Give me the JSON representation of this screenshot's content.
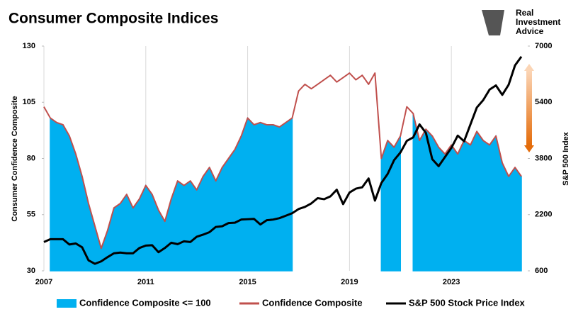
{
  "chart_data": {
    "type": "composite",
    "title": "Consumer Composite Indices",
    "y_label": "Consumer Confidence Composite",
    "y2_label": "S&P 500 Index",
    "xlim": [
      2007,
      2026
    ],
    "xticks": [
      2007,
      2011,
      2015,
      2019,
      2023
    ],
    "ylim": [
      30,
      130
    ],
    "yticks": [
      30,
      55,
      80,
      105,
      130
    ],
    "y2lim": [
      600,
      7000
    ],
    "y2ticks": [
      600,
      2200,
      3800,
      5400,
      7000
    ],
    "grid": "x",
    "x": [
      2007.0,
      2007.25,
      2007.5,
      2007.75,
      2008.0,
      2008.25,
      2008.5,
      2008.75,
      2009.0,
      2009.25,
      2009.5,
      2009.75,
      2010.0,
      2010.25,
      2010.5,
      2010.75,
      2011.0,
      2011.25,
      2011.5,
      2011.75,
      2012.0,
      2012.25,
      2012.5,
      2012.75,
      2013.0,
      2013.25,
      2013.5,
      2013.75,
      2014.0,
      2014.25,
      2014.5,
      2014.75,
      2015.0,
      2015.25,
      2015.5,
      2015.75,
      2016.0,
      2016.25,
      2016.5,
      2016.75,
      2017.0,
      2017.25,
      2017.5,
      2017.75,
      2018.0,
      2018.25,
      2018.5,
      2018.75,
      2019.0,
      2019.25,
      2019.5,
      2019.75,
      2020.0,
      2020.25,
      2020.5,
      2020.75,
      2021.0,
      2021.25,
      2021.5,
      2021.75,
      2022.0,
      2022.25,
      2022.5,
      2022.75,
      2023.0,
      2023.25,
      2023.5,
      2023.75,
      2024.0,
      2024.25,
      2024.5,
      2024.75,
      2025.0,
      2025.25,
      2025.5,
      2025.75
    ],
    "series": [
      {
        "name": "Confidence Composite <= 100",
        "kind": "area",
        "color": "#00b0f0",
        "values": [
          null,
          98,
          96,
          95,
          90,
          82,
          72,
          60,
          50,
          40,
          48,
          58,
          60,
          64,
          58,
          62,
          68,
          64,
          57,
          52,
          62,
          70,
          68,
          70,
          66,
          72,
          76,
          70,
          76,
          80,
          84,
          90,
          98,
          95,
          96,
          95,
          95,
          94,
          96,
          98,
          null,
          null,
          null,
          null,
          null,
          null,
          null,
          null,
          null,
          null,
          null,
          null,
          null,
          80,
          88,
          85,
          90,
          null,
          100,
          88,
          93,
          90,
          85,
          82,
          86,
          82,
          88,
          86,
          92,
          88,
          86,
          90,
          78,
          72,
          76,
          72
        ]
      },
      {
        "name": "Confidence Composite",
        "kind": "line",
        "color": "#c0504d",
        "values": [
          103,
          98,
          96,
          95,
          90,
          82,
          72,
          60,
          50,
          40,
          48,
          58,
          60,
          64,
          58,
          62,
          68,
          64,
          57,
          52,
          62,
          70,
          68,
          70,
          66,
          72,
          76,
          70,
          76,
          80,
          84,
          90,
          98,
          95,
          96,
          95,
          95,
          94,
          96,
          98,
          110,
          113,
          111,
          113,
          115,
          117,
          114,
          116,
          118,
          115,
          117,
          113,
          118,
          80,
          88,
          85,
          90,
          103,
          100,
          88,
          93,
          90,
          85,
          82,
          86,
          82,
          88,
          86,
          92,
          88,
          86,
          90,
          78,
          72,
          76,
          72
        ]
      },
      {
        "name": "S&P 500 Stock Price Index",
        "kind": "line",
        "axis": "y2",
        "color": "#000000",
        "values": [
          1420,
          1500,
          1500,
          1500,
          1350,
          1380,
          1270,
          900,
          800,
          870,
          990,
          1100,
          1120,
          1100,
          1100,
          1250,
          1320,
          1330,
          1130,
          1250,
          1400,
          1360,
          1440,
          1420,
          1570,
          1630,
          1700,
          1850,
          1870,
          1960,
          1970,
          2060,
          2070,
          2080,
          1920,
          2040,
          2060,
          2100,
          2170,
          2240,
          2360,
          2420,
          2520,
          2670,
          2640,
          2720,
          2910,
          2500,
          2830,
          2940,
          2980,
          3230,
          2600,
          3100,
          3360,
          3750,
          3970,
          4300,
          4400,
          4770,
          4530,
          3780,
          3580,
          3840,
          4100,
          4450,
          4290,
          4770,
          5250,
          5460,
          5760,
          5880,
          5610,
          5900,
          6450,
          6700
        ]
      }
    ]
  },
  "logo": {
    "lines": [
      "Real",
      "Investment",
      "Advice"
    ]
  }
}
